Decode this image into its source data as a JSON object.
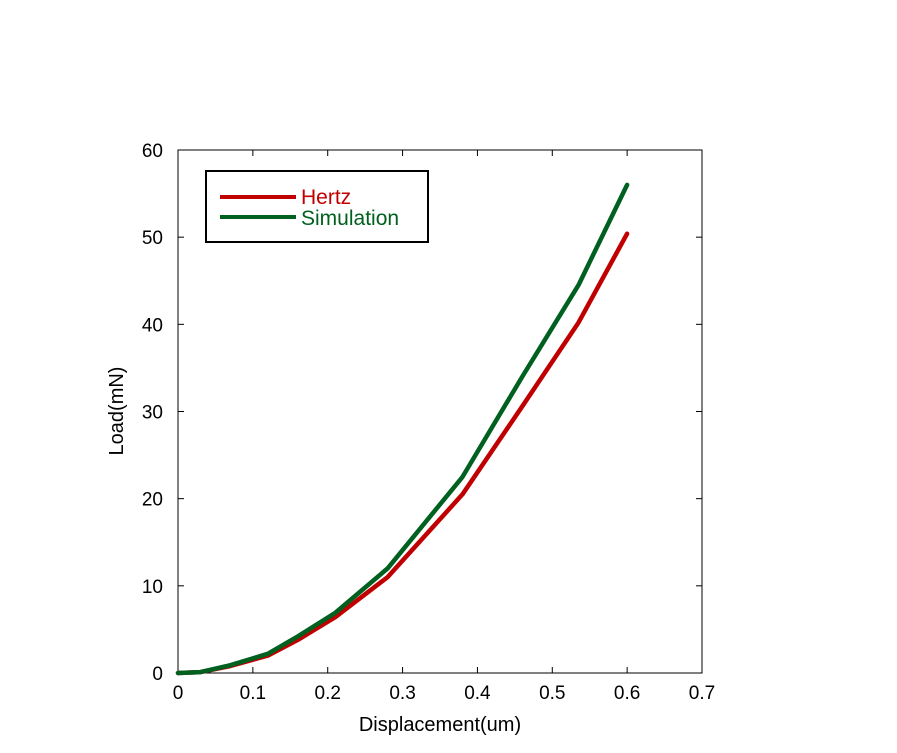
{
  "chart_data": {
    "type": "line",
    "title": "",
    "xlabel": "Displacement(um)",
    "ylabel": "Load(mN)",
    "xlim": [
      0,
      0.7
    ],
    "ylim": [
      0,
      60
    ],
    "xticks": [
      0,
      0.1,
      0.2,
      0.3,
      0.4,
      0.5,
      0.6,
      0.7
    ],
    "xtick_labels": [
      "0",
      "0.1",
      "0.2",
      "0.3",
      "0.4",
      "0.5",
      "0.6",
      "0.7"
    ],
    "yticks": [
      0,
      10,
      20,
      30,
      40,
      50,
      60
    ],
    "ytick_labels": [
      "0",
      "10",
      "20",
      "30",
      "40",
      "50",
      "60"
    ],
    "grid": false,
    "legend_position": "top-left",
    "series": [
      {
        "name": "Hertz",
        "color": "#c00000",
        "x": [
          0,
          0.03,
          0.07,
          0.12,
          0.16,
          0.21,
          0.28,
          0.38,
          0.46,
          0.535,
          0.6
        ],
        "y": [
          0,
          0.1,
          0.8,
          2.0,
          3.8,
          6.4,
          11.0,
          20.5,
          30.6,
          40.2,
          50.4
        ]
      },
      {
        "name": "Simulation",
        "color": "#006020",
        "x": [
          0,
          0.03,
          0.07,
          0.12,
          0.16,
          0.21,
          0.28,
          0.38,
          0.46,
          0.535,
          0.6
        ],
        "y": [
          0,
          0.1,
          0.9,
          2.2,
          4.2,
          6.9,
          12.0,
          22.5,
          34.0,
          44.5,
          56.0
        ]
      }
    ]
  }
}
